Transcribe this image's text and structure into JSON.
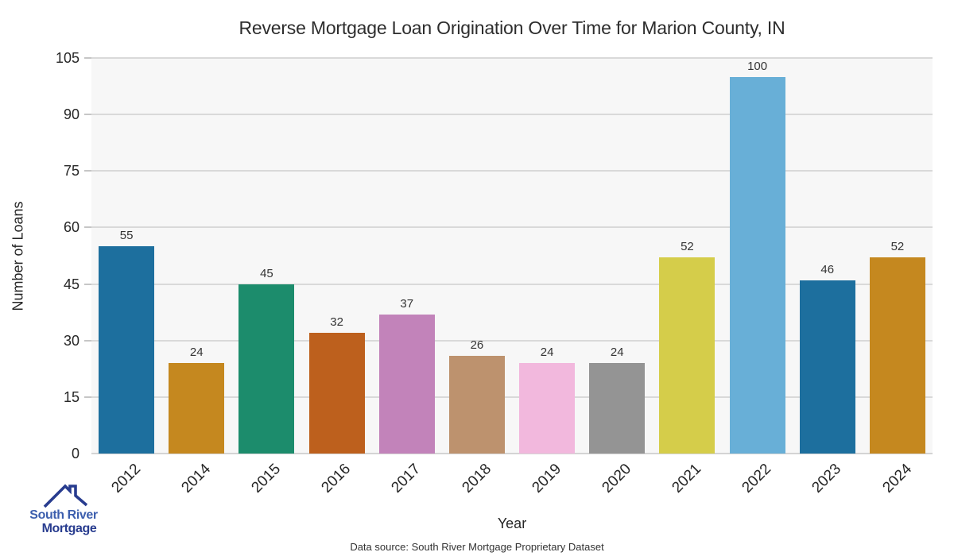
{
  "chart_data": {
    "type": "bar",
    "title": "Reverse Mortgage Loan Origination Over Time for Marion County, IN",
    "xlabel": "Year",
    "ylabel": "Number of Loans",
    "categories": [
      "2012",
      "2014",
      "2015",
      "2016",
      "2017",
      "2018",
      "2019",
      "2020",
      "2021",
      "2022",
      "2023",
      "2024"
    ],
    "values": [
      55,
      24,
      45,
      32,
      37,
      26,
      24,
      24,
      52,
      100,
      46,
      52
    ],
    "bar_colors": [
      "#1d6f9e",
      "#c5881f",
      "#1c8c6c",
      "#bd601d",
      "#c283ba",
      "#bd926e",
      "#f2b8dd",
      "#949494",
      "#d5cd4a",
      "#68afd7",
      "#1d6f9e",
      "#c5881f"
    ],
    "ylim": [
      0,
      105
    ],
    "yticks": [
      0,
      15,
      30,
      45,
      60,
      75,
      90,
      105
    ],
    "grid": "horizontal",
    "legend": "none",
    "plot_background": "#f7f7f7",
    "grid_color": "#d9d9d9"
  },
  "footer": {
    "source_text": "Data source: South River Mortgage Proprietary Dataset"
  },
  "branding": {
    "logo_line1": "South River",
    "logo_line2": "Mortgage",
    "logo_color_primary": "#3d5fae",
    "logo_color_secondary": "#283c8f",
    "logo_icon": "house-roof-icon"
  }
}
